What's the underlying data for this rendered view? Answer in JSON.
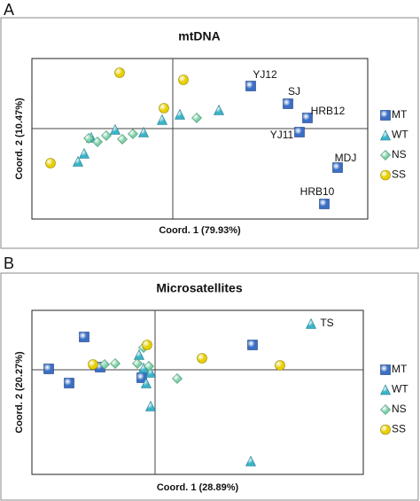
{
  "chart_data": [
    {
      "type": "scatter",
      "panel": "A",
      "title": "mtDNA",
      "x_label": "Coord. 1 (79.93%)",
      "y_label": "Coord. 2 (10.47%)",
      "xlim": [
        -1.59,
        2.2
      ],
      "ylim": [
        -1.02,
        0.79
      ],
      "legend": "right",
      "series": [
        {
          "name": "MT",
          "color": "#3a6fc4",
          "marker": "square",
          "x": [
            0.88,
            1.3,
            1.52,
            1.43,
            1.86,
            1.71
          ],
          "values": [
            0.48,
            0.28,
            0.12,
            -0.04,
            -0.44,
            -0.85
          ],
          "labels": [
            "YJ12",
            "SJ",
            "HRB12",
            "YJ11",
            "MDJ",
            "HRB10"
          ]
        },
        {
          "name": "WT",
          "color": "#3bb3c8",
          "marker": "triangle",
          "x": [
            -1.07,
            -1.0,
            -0.92,
            -0.65,
            -0.33,
            -0.12,
            0.08,
            0.52
          ],
          "values": [
            -0.37,
            -0.28,
            -0.1,
            -0.01,
            -0.04,
            0.1,
            0.16,
            0.21
          ]
        },
        {
          "name": "NS",
          "color": "#7fd1a8",
          "marker": "diamond",
          "x": [
            -0.95,
            -0.85,
            -0.75,
            -0.57,
            -0.45,
            0.27
          ],
          "values": [
            -0.11,
            -0.15,
            -0.08,
            -0.12,
            -0.06,
            0.12
          ]
        },
        {
          "name": "SS",
          "color": "#e8d000",
          "marker": "circle",
          "x": [
            -0.6,
            0.12,
            -0.1,
            -1.38
          ],
          "values": [
            0.63,
            0.55,
            0.23,
            -0.39
          ]
        }
      ]
    },
    {
      "type": "scatter",
      "panel": "B",
      "title": "Microsatellites",
      "x_label": "Coord. 1 (28.89%)",
      "y_label": "Coord. 2 (20.27%)",
      "xlim": [
        -1.39,
        2.35
      ],
      "ylim": [
        -1.18,
        0.67
      ],
      "legend": "right",
      "series": [
        {
          "name": "MT",
          "color": "#3a6fc4",
          "marker": "square",
          "x": [
            -1.2,
            -0.8,
            -0.97,
            -0.62,
            -0.15,
            1.1
          ],
          "values": [
            0.01,
            0.37,
            -0.15,
            0.03,
            -0.09,
            0.28
          ]
        },
        {
          "name": "WT",
          "color": "#3bb3c8",
          "marker": "triangle",
          "x": [
            1.76,
            -0.18,
            -0.05,
            -0.1,
            -0.05,
            1.08,
            -0.13
          ],
          "values": [
            0.52,
            0.17,
            -0.03,
            -0.15,
            -0.41,
            -1.03,
            0.02
          ],
          "labels": [
            "TS",
            null,
            null,
            null,
            null,
            null,
            null
          ]
        },
        {
          "name": "NS",
          "color": "#7fd1a8",
          "marker": "diamond",
          "x": [
            -0.57,
            -0.45,
            -0.2,
            -0.07,
            0.25,
            -0.13
          ],
          "values": [
            0.06,
            0.07,
            0.07,
            0.04,
            -0.1,
            0.25
          ]
        },
        {
          "name": "SS",
          "color": "#e8d000",
          "marker": "circle",
          "x": [
            -0.7,
            -0.09,
            0.53,
            1.41
          ],
          "values": [
            0.06,
            0.28,
            0.13,
            0.05
          ]
        }
      ]
    }
  ]
}
